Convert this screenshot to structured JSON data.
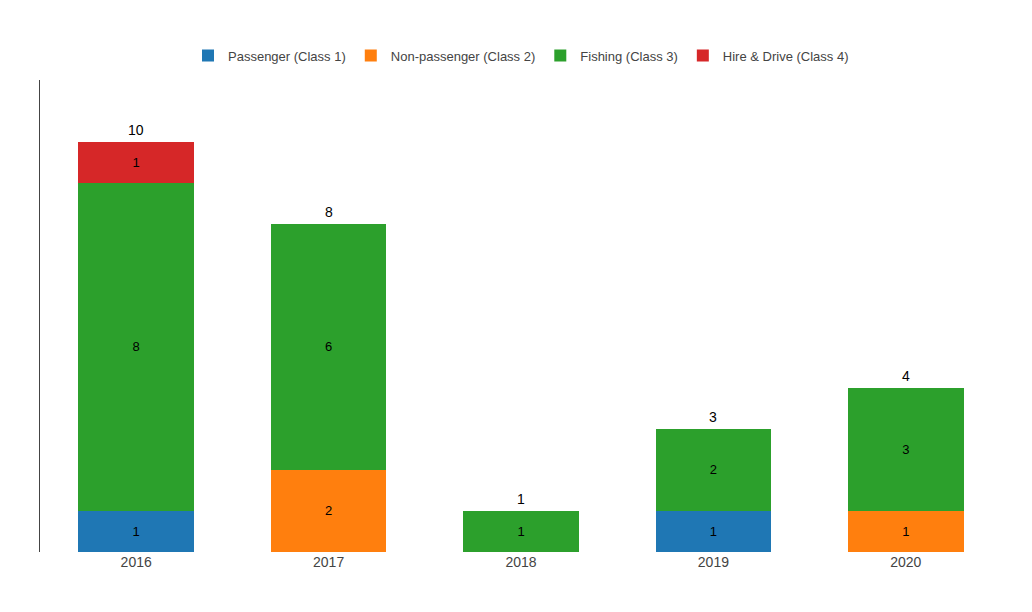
{
  "chart_data": {
    "type": "bar",
    "stacked": true,
    "categories": [
      "2016",
      "2017",
      "2018",
      "2019",
      "2020"
    ],
    "series": [
      {
        "name": "Passenger (Class 1)",
        "values": [
          1,
          0,
          0,
          1,
          0
        ]
      },
      {
        "name": "Non-passenger (Class 2)",
        "values": [
          0,
          2,
          0,
          0,
          1
        ]
      },
      {
        "name": "Fishing (Class 3)",
        "values": [
          8,
          6,
          1,
          2,
          3
        ]
      },
      {
        "name": "Hire & Drive (Class 4)",
        "values": [
          1,
          0,
          0,
          0,
          0
        ]
      }
    ],
    "totals": [
      10,
      8,
      1,
      3,
      4
    ],
    "data_labels": true,
    "ylim": [
      0,
      11.5
    ],
    "tick_labels": "x",
    "grid": false,
    "legend": "top"
  }
}
